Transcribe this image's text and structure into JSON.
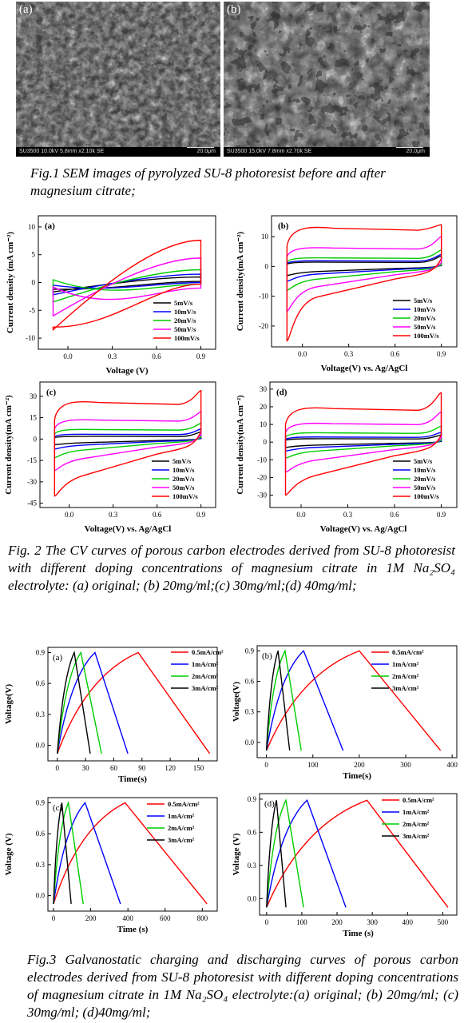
{
  "fig1": {
    "images": [
      {
        "label": "(a)",
        "info": "SU3500 10.0kV 5.8mm x2.10k SE",
        "scale": "20.0μm"
      },
      {
        "label": "(b)",
        "info": "SU3500 15.0kV 7.8mm x2.70k SE",
        "scale": "20.0μm"
      }
    ],
    "caption": "Fig.1 SEM images of pyrolyzed SU-8 photoresist before and after magnesium citrate;"
  },
  "fig2_caption": "Fig. 2 The CV curves of porous carbon electrodes derived from SU-8 photoresist with different doping concentrations of magnesium citrate in 1M Na₂SO₄ electrolyte: (a) original; (b) 20mg/ml;(c) 30mg/ml;(d) 40mg/ml;",
  "fig3_caption": "Fig.3 Galvanostatic charging and discharging curves of porous carbon electrodes derived from SU-8 photoresist with different doping concentrations of magnesium citrate in 1M Na₂SO₄ electrolyte:(a) original; (b) 20mg/ml; (c) 30mg/ml; (d)40mg/ml;",
  "colors": {
    "s1": "#000000",
    "s2": "#0000ff",
    "s3": "#00cc00",
    "s4": "#ff00ff",
    "s5": "#ff0000"
  },
  "chart_data": [
    {
      "id": "2a",
      "type": "line",
      "panel_label": "(a)",
      "xlabel": "Voltage (V)",
      "ylabel": "Current density (mA cm⁻²)",
      "xlim": [
        -0.2,
        1.0
      ],
      "ylim": [
        -12,
        12
      ],
      "xticks": [
        "0.0",
        "0.3",
        "0.6",
        "0.9"
      ],
      "yticks": [
        "10",
        "5",
        "0",
        "-5",
        "-10"
      ],
      "legend": [
        "5mV/s",
        "10mV/s",
        "20mV/s",
        "50mV/s",
        "100mV/s"
      ],
      "legend_position": "bottom-right",
      "series": [
        {
          "name": "5mV/s",
          "x": [
            -0.1,
            0.9
          ],
          "upper": [
            -1.2,
            1.0
          ],
          "lower": [
            -1.7,
            0.2
          ]
        },
        {
          "name": "10mV/s",
          "x": [
            -0.1,
            0.9
          ],
          "upper": [
            -0.5,
            1.5
          ],
          "lower": [
            -2.2,
            0.0
          ]
        },
        {
          "name": "20mV/s",
          "x": [
            -0.1,
            0.9
          ],
          "upper": [
            0.5,
            2.3
          ],
          "lower": [
            -3.5,
            -0.3
          ]
        },
        {
          "name": "50mV/s",
          "x": [
            -0.1,
            0.9
          ],
          "upper": [
            -0.8,
            4.4
          ],
          "lower": [
            -6.0,
            -1.0
          ]
        },
        {
          "name": "100mV/s",
          "x": [
            -0.1,
            0.9
          ],
          "upper": [
            -8.0,
            7.6
          ],
          "lower": [
            -8.5,
            -0.3
          ]
        }
      ]
    },
    {
      "id": "2b",
      "type": "line",
      "panel_label": "(b)",
      "xlabel": "Voltage(V) vs. Ag/AgCl",
      "ylabel": "Current density(mA cm⁻²)",
      "xlim": [
        -0.2,
        1.0
      ],
      "ylim": [
        -27,
        17
      ],
      "xticks": [
        "0.0",
        "0.3",
        "0.6",
        "0.9"
      ],
      "yticks": [
        "10",
        "0",
        "-10",
        "-20"
      ],
      "legend": [
        "5mV/s",
        "10mV/s",
        "20mV/s",
        "50mV/s",
        "100mV/s"
      ],
      "legend_position": "bottom-right",
      "series": [
        {
          "name": "5mV/s",
          "upper": 1.5,
          "lower": -2.0,
          "tailTop": 3.5,
          "tailBot": -3.0
        },
        {
          "name": "10mV/s",
          "upper": 2.0,
          "lower": -3.0,
          "tailTop": 4.0,
          "tailBot": -5.0
        },
        {
          "name": "20mV/s",
          "upper": 3.0,
          "lower": -5.0,
          "tailTop": 5.5,
          "tailBot": -8.0
        },
        {
          "name": "50mV/s",
          "upper": 6.5,
          "lower": -8.0,
          "tailTop": 10.0,
          "tailBot": -15.0
        },
        {
          "name": "100mV/s",
          "upper": 13.5,
          "lower": -12.0,
          "tailTop": 14.0,
          "tailBot": -25.0
        }
      ]
    },
    {
      "id": "2c",
      "type": "line",
      "panel_label": "(c)",
      "xlabel": "Voltage(V) vs. Ag/AgCl",
      "ylabel": "Current density(mA cm⁻²)",
      "xlim": [
        -0.2,
        1.0
      ],
      "ylim": [
        -48,
        40
      ],
      "xticks": [
        "0.0",
        "0.3",
        "0.6",
        "0.9"
      ],
      "yticks": [
        "30",
        "15",
        "0",
        "-15",
        "-30",
        "-45"
      ],
      "legend": [
        "5mV/s",
        "10mV/s",
        "20mV/s",
        "50mV/s",
        "100mV/s"
      ],
      "legend_position": "bottom-right",
      "series": [
        {
          "name": "5mV/s",
          "upper": 2.0,
          "lower": -3.0,
          "tailTop": 5.0,
          "tailBot": -4.0
        },
        {
          "name": "10mV/s",
          "upper": 3.5,
          "lower": -5.0,
          "tailTop": 7.0,
          "tailBot": -7.0
        },
        {
          "name": "20mV/s",
          "upper": 7.0,
          "lower": -9.0,
          "tailTop": 11.0,
          "tailBot": -13.0
        },
        {
          "name": "50mV/s",
          "upper": 14.0,
          "lower": -16.0,
          "tailTop": 19.0,
          "tailBot": -22.0
        },
        {
          "name": "100mV/s",
          "upper": 27.0,
          "lower": -30.0,
          "tailTop": 34.0,
          "tailBot": -40.0
        }
      ]
    },
    {
      "id": "2d",
      "type": "line",
      "panel_label": "(d)",
      "xlabel": "Voltage(V) vs. Ag/AgCl",
      "ylabel": "Current density(mA cm⁻²)",
      "xlim": [
        -0.2,
        1.0
      ],
      "ylim": [
        -37,
        34
      ],
      "xticks": [
        "0.0",
        "0.3",
        "0.6",
        "0.9"
      ],
      "yticks": [
        "30",
        "20",
        "10",
        "0",
        "-10",
        "-20",
        "-30"
      ],
      "legend": [
        "5mV/s",
        "10mV/s",
        "20mV/s",
        "50mV/s",
        "100mV/s"
      ],
      "legend_position": "bottom-right",
      "series": [
        {
          "name": "5mV/s",
          "upper": 2.0,
          "lower": -2.0,
          "tailTop": 4.0,
          "tailBot": -3.0
        },
        {
          "name": "10mV/s",
          "upper": 3.0,
          "lower": -3.5,
          "tailTop": 5.5,
          "tailBot": -5.0
        },
        {
          "name": "20mV/s",
          "upper": 5.5,
          "lower": -6.0,
          "tailTop": 9.0,
          "tailBot": -9.0
        },
        {
          "name": "50mV/s",
          "upper": 11.0,
          "lower": -12.0,
          "tailTop": 17.0,
          "tailBot": -17.0
        },
        {
          "name": "100mV/s",
          "upper": 20.0,
          "lower": -22.0,
          "tailTop": 28.0,
          "tailBot": -30.0
        }
      ]
    },
    {
      "id": "3a",
      "type": "line",
      "panel_label": "(a)",
      "xlabel": "Time(s)",
      "ylabel": "Voltage(V)",
      "xlim": [
        -10,
        170
      ],
      "ylim": [
        -0.15,
        0.95
      ],
      "xticks": [
        "0",
        "30",
        "60",
        "90",
        "120",
        "150"
      ],
      "yticks": [
        "0.9",
        "0.6",
        "0.3",
        "0.0"
      ],
      "legend": [
        "0.5mA/cm²",
        "1mA/cm²",
        "2mA/cm²",
        "3mA/cm²"
      ],
      "legend_position": "top-right",
      "series": [
        {
          "name": "0.5mA/cm²",
          "points": [
            [
              0,
              -0.08
            ],
            [
              86,
              0.9
            ],
            [
              162,
              -0.08
            ]
          ]
        },
        {
          "name": "1mA/cm²",
          "points": [
            [
              0,
              -0.08
            ],
            [
              40,
              0.9
            ],
            [
              75,
              -0.08
            ]
          ]
        },
        {
          "name": "2mA/cm²",
          "points": [
            [
              0,
              -0.08
            ],
            [
              25,
              0.9
            ],
            [
              47,
              -0.08
            ]
          ]
        },
        {
          "name": "3mA/cm²",
          "points": [
            [
              0,
              -0.08
            ],
            [
              18,
              0.9
            ],
            [
              35,
              -0.08
            ]
          ]
        }
      ]
    },
    {
      "id": "3b",
      "type": "line",
      "panel_label": "(b)",
      "xlabel": "Time(s)",
      "ylabel": "Voltage(V)",
      "xlim": [
        -20,
        410
      ],
      "ylim": [
        -0.15,
        0.95
      ],
      "xticks": [
        "0",
        "100",
        "200",
        "300",
        "400"
      ],
      "yticks": [
        "0.9",
        "0.6",
        "0.3",
        "0.0"
      ],
      "legend": [
        "0.5mA/cm²",
        "1mA/cm²",
        "2mA/cm²",
        "3mA/cm²"
      ],
      "legend_position": "top-right",
      "series": [
        {
          "name": "0.5mA/cm²",
          "points": [
            [
              0,
              -0.08
            ],
            [
              200,
              0.9
            ],
            [
              375,
              -0.08
            ]
          ]
        },
        {
          "name": "1mA/cm²",
          "points": [
            [
              0,
              -0.08
            ],
            [
              80,
              0.9
            ],
            [
              165,
              -0.08
            ]
          ]
        },
        {
          "name": "2mA/cm²",
          "points": [
            [
              0,
              -0.08
            ],
            [
              40,
              0.9
            ],
            [
              75,
              -0.08
            ]
          ]
        },
        {
          "name": "3mA/cm²",
          "points": [
            [
              0,
              -0.08
            ],
            [
              25,
              0.9
            ],
            [
              50,
              -0.08
            ]
          ]
        }
      ]
    },
    {
      "id": "3c",
      "type": "line",
      "panel_label": "(c)",
      "xlabel": "Time (s)",
      "ylabel": "Voltage (V)",
      "xlim": [
        -30,
        880
      ],
      "ylim": [
        -0.15,
        0.95
      ],
      "xticks": [
        "0",
        "200",
        "400",
        "600",
        "800"
      ],
      "yticks": [
        "0.9",
        "0.6",
        "0.3",
        "0.0"
      ],
      "legend": [
        "0.5mA/cm²",
        "1mA/cm²",
        "2mA/cm²",
        "3mA/cm²"
      ],
      "legend_position": "top-right",
      "series": [
        {
          "name": "0.5mA/cm²",
          "points": [
            [
              0,
              -0.08
            ],
            [
              385,
              0.9
            ],
            [
              825,
              -0.08
            ]
          ]
        },
        {
          "name": "1mA/cm²",
          "points": [
            [
              0,
              -0.08
            ],
            [
              170,
              0.9
            ],
            [
              360,
              -0.08
            ]
          ]
        },
        {
          "name": "2mA/cm²",
          "points": [
            [
              0,
              -0.08
            ],
            [
              80,
              0.9
            ],
            [
              160,
              -0.08
            ]
          ]
        },
        {
          "name": "3mA/cm²",
          "points": [
            [
              0,
              -0.08
            ],
            [
              45,
              0.9
            ],
            [
              95,
              -0.08
            ]
          ]
        }
      ]
    },
    {
      "id": "3d",
      "type": "line",
      "panel_label": "(d)",
      "xlabel": "Time (s)",
      "ylabel": "Voltage (V)",
      "xlim": [
        -20,
        540
      ],
      "ylim": [
        -0.15,
        0.95
      ],
      "xticks": [
        "0",
        "100",
        "200",
        "300",
        "400",
        "500"
      ],
      "yticks": [
        "0.9",
        "0.6",
        "0.3",
        "0.0"
      ],
      "legend": [
        "0.5mA/cm²",
        "1mA/cm²",
        "2mA/cm²",
        "3mA/cm²"
      ],
      "legend_position": "top-right",
      "series": [
        {
          "name": "0.5mA/cm²",
          "points": [
            [
              0,
              -0.08
            ],
            [
              285,
              0.89
            ],
            [
              515,
              -0.08
            ]
          ]
        },
        {
          "name": "1mA/cm²",
          "points": [
            [
              0,
              -0.08
            ],
            [
              115,
              0.89
            ],
            [
              225,
              -0.08
            ]
          ]
        },
        {
          "name": "2mA/cm²",
          "points": [
            [
              0,
              -0.08
            ],
            [
              55,
              0.89
            ],
            [
              105,
              -0.08
            ]
          ]
        },
        {
          "name": "3mA/cm²",
          "points": [
            [
              0,
              -0.08
            ],
            [
              28,
              0.89
            ],
            [
              55,
              -0.08
            ]
          ]
        }
      ]
    }
  ]
}
